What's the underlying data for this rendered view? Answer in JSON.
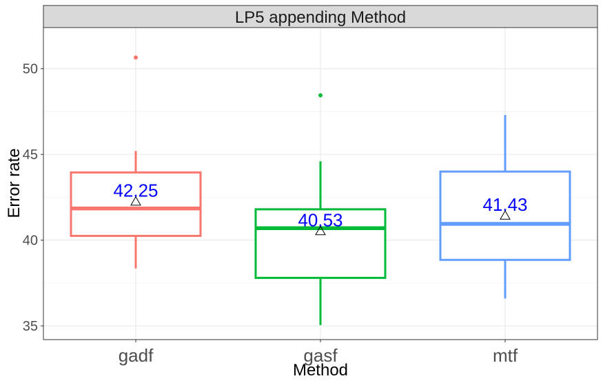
{
  "chart_data": {
    "type": "box",
    "title": "LP5 appending Method",
    "xlabel": "Method",
    "ylabel": "Error rate",
    "ylim": [
      34.2,
      52.4
    ],
    "y_ticks": [
      35,
      40,
      45,
      50
    ],
    "grid": true,
    "legend": "none",
    "categories": [
      "gadf",
      "gasf",
      "mtf"
    ],
    "series": [
      {
        "category": "gadf",
        "color": "#F8766D",
        "whisker_low": 38.35,
        "q1": 40.25,
        "median": 41.85,
        "q3": 43.95,
        "whisker_high": 45.2,
        "outliers": [
          50.65
        ],
        "mean": 42.25,
        "mean_label": "42.25"
      },
      {
        "category": "gasf",
        "color": "#00BA38",
        "whisker_low": 35.05,
        "q1": 37.8,
        "median": 40.7,
        "q3": 41.8,
        "whisker_high": 44.6,
        "outliers": [
          48.45
        ],
        "mean": 40.53,
        "mean_label": "40.53"
      },
      {
        "category": "mtf",
        "color": "#619CFF",
        "whisker_low": 36.6,
        "q1": 38.85,
        "median": 40.95,
        "q3": 44.0,
        "whisker_high": 47.3,
        "outliers": [],
        "mean": 41.43,
        "mean_label": "41.43"
      }
    ],
    "mean_label_color": "#0000FF",
    "mean_marker": "triangle"
  }
}
